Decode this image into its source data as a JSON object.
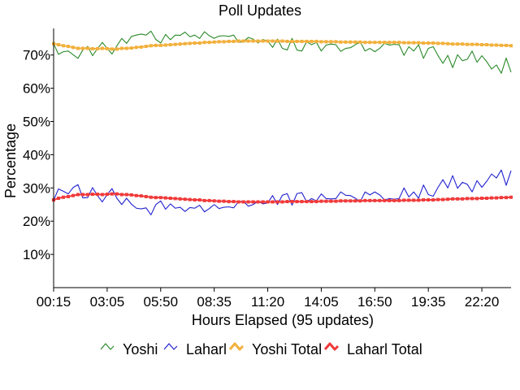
{
  "chart_data": {
    "type": "line",
    "title": "Poll Updates",
    "xlabel": "Hours Elapsed (95 updates)",
    "ylabel": "Percentage",
    "x_tick_labels": [
      "00:15",
      "03:05",
      "05:50",
      "08:35",
      "11:20",
      "14:05",
      "16:50",
      "19:35",
      "22:20"
    ],
    "y_tick_labels": [
      "10%",
      "20%",
      "30%",
      "40%",
      "50%",
      "60%",
      "70%"
    ],
    "y_ticks": [
      10,
      20,
      30,
      40,
      50,
      60,
      70
    ],
    "ylim": [
      0,
      78
    ],
    "x_count": 95,
    "grid": false,
    "legend_position": "bottom",
    "series": [
      {
        "name": "Yoshi",
        "color": "#2a8a2a",
        "values": [
          73.4,
          70.2,
          71.0,
          71.2,
          70.1,
          69.0,
          71.5,
          72.6,
          69.8,
          71.9,
          73.8,
          72.0,
          70.3,
          72.8,
          75.0,
          73.5,
          75.6,
          76.0,
          76.3,
          76.0,
          77.2,
          74.7,
          73.6,
          76.2,
          74.6,
          76.0,
          75.9,
          76.9,
          75.5,
          76.0,
          75.0,
          77.0,
          75.8,
          75.0,
          75.7,
          75.8,
          75.6,
          76.0,
          73.8,
          74.0,
          75.3,
          74.8,
          73.6,
          74.7,
          74.2,
          72.3,
          74.8,
          72.0,
          71.5,
          75.0,
          71.5,
          71.2,
          74.0,
          73.1,
          73.8,
          71.2,
          73.0,
          73.3,
          73.1,
          71.1,
          72.0,
          72.2,
          73.1,
          74.0,
          71.2,
          72.0,
          71.0,
          72.0,
          73.5,
          73.0,
          73.2,
          73.1,
          69.9,
          72.5,
          71.2,
          73.1,
          69.0,
          72.0,
          72.5,
          69.8,
          67.5,
          69.9,
          66.2,
          70.1,
          68.3,
          68.7,
          71.2,
          67.8,
          69.8,
          68.0,
          65.8,
          67.0,
          64.5,
          69.1,
          64.8
        ]
      },
      {
        "name": "Laharl",
        "color": "#2222d0",
        "values": [
          26.3,
          29.7,
          29.0,
          28.2,
          30.1,
          31.0,
          27.0,
          27.1,
          30.1,
          27.7,
          25.8,
          28.0,
          29.8,
          26.9,
          25.0,
          26.9,
          25.1,
          23.9,
          23.7,
          24.0,
          21.9,
          25.0,
          26.1,
          23.6,
          25.2,
          23.9,
          24.2,
          22.9,
          24.1,
          23.9,
          24.8,
          22.8,
          23.8,
          25.0,
          23.8,
          24.2,
          24.3,
          24.0,
          25.9,
          26.0,
          24.5,
          25.0,
          26.0,
          25.2,
          25.5,
          27.7,
          25.0,
          27.8,
          28.3,
          24.8,
          28.3,
          28.6,
          25.8,
          26.8,
          26.1,
          28.2,
          26.8,
          26.7,
          26.8,
          28.8,
          27.8,
          27.7,
          26.9,
          25.8,
          28.8,
          27.9,
          28.8,
          27.9,
          26.4,
          26.8,
          26.6,
          26.8,
          30.0,
          27.3,
          28.8,
          26.9,
          30.9,
          28.0,
          27.5,
          30.2,
          32.5,
          30.0,
          33.7,
          29.9,
          31.7,
          31.1,
          28.8,
          32.2,
          30.2,
          32.0,
          34.2,
          33.0,
          35.4,
          30.8,
          35.2
        ]
      },
      {
        "name": "Yoshi Total",
        "color": "#f2b03c",
        "values": [
          73.4,
          73.1,
          72.8,
          72.6,
          72.3,
          72.0,
          72.0,
          72.0,
          71.9,
          71.9,
          72.0,
          71.9,
          71.8,
          71.8,
          72.0,
          72.0,
          72.1,
          72.3,
          72.4,
          72.6,
          72.8,
          72.9,
          72.9,
          73.0,
          73.1,
          73.2,
          73.3,
          73.4,
          73.5,
          73.6,
          73.6,
          73.8,
          73.8,
          73.9,
          74.0,
          74.0,
          74.1,
          74.1,
          74.2,
          74.2,
          74.2,
          74.2,
          74.2,
          74.2,
          74.2,
          74.2,
          74.2,
          74.2,
          74.1,
          74.1,
          74.1,
          74.1,
          74.1,
          74.1,
          74.1,
          74.0,
          74.0,
          74.0,
          74.0,
          73.9,
          73.9,
          73.9,
          73.9,
          73.9,
          73.8,
          73.8,
          73.8,
          73.8,
          73.8,
          73.8,
          73.8,
          73.8,
          73.7,
          73.7,
          73.7,
          73.7,
          73.6,
          73.6,
          73.6,
          73.5,
          73.5,
          73.4,
          73.3,
          73.3,
          73.3,
          73.2,
          73.2,
          73.2,
          73.1,
          73.1,
          73.0,
          73.0,
          72.9,
          72.9,
          72.8
        ]
      },
      {
        "name": "Laharl Total",
        "color": "#f03a3a",
        "values": [
          26.4,
          26.9,
          27.2,
          27.4,
          27.7,
          28.0,
          28.0,
          28.0,
          28.1,
          28.1,
          28.0,
          28.1,
          28.2,
          28.2,
          28.0,
          28.0,
          27.9,
          27.7,
          27.6,
          27.4,
          27.2,
          27.1,
          27.1,
          27.0,
          26.9,
          26.8,
          26.7,
          26.6,
          26.5,
          26.4,
          26.4,
          26.2,
          26.2,
          26.1,
          26.0,
          26.0,
          25.9,
          25.9,
          25.8,
          25.8,
          25.8,
          25.8,
          25.8,
          25.8,
          25.8,
          25.8,
          25.8,
          25.8,
          25.9,
          25.9,
          25.9,
          25.9,
          25.9,
          25.9,
          25.9,
          26.0,
          26.0,
          26.0,
          26.0,
          26.1,
          26.1,
          26.1,
          26.1,
          26.1,
          26.2,
          26.2,
          26.2,
          26.2,
          26.2,
          26.2,
          26.2,
          26.2,
          26.3,
          26.3,
          26.3,
          26.3,
          26.4,
          26.4,
          26.4,
          26.5,
          26.5,
          26.6,
          26.7,
          26.7,
          26.7,
          26.8,
          26.8,
          26.8,
          26.9,
          26.9,
          27.0,
          27.0,
          27.1,
          27.1,
          27.2
        ]
      }
    ]
  }
}
